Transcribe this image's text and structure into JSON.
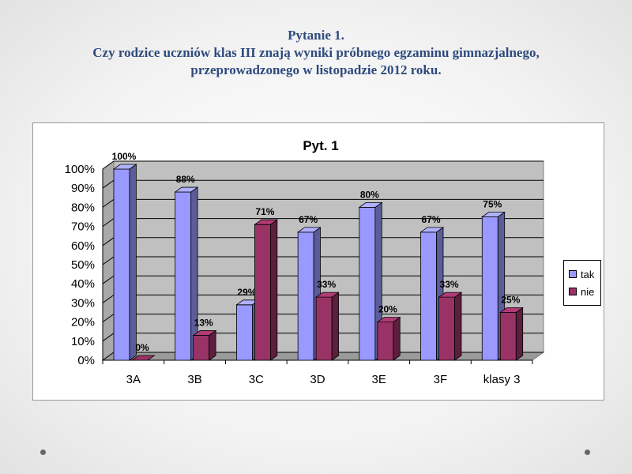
{
  "slide": {
    "title_lines": [
      "Pytanie 1.",
      "Czy rodzice uczniów klas III znają wyniki próbnego egzaminu gimnazjalnego,",
      "przeprowadzonego w listopadzie 2012 roku."
    ]
  },
  "chart_data": {
    "type": "bar",
    "title": "Pyt. 1",
    "categories": [
      "3A",
      "3B",
      "3C",
      "3D",
      "3E",
      "3F",
      "klasy 3"
    ],
    "series": [
      {
        "name": "tak",
        "color": "#9999ff",
        "values": [
          100,
          88,
          29,
          67,
          80,
          67,
          75
        ],
        "labels": [
          "100%",
          "88%",
          "29%",
          "67%",
          "80%",
          "67%",
          "75%"
        ]
      },
      {
        "name": "nie",
        "color": "#993366",
        "values": [
          0,
          13,
          71,
          33,
          20,
          33,
          25
        ],
        "labels": [
          "0%",
          "13%",
          "71%",
          "33%",
          "20%",
          "33%",
          "25%"
        ]
      }
    ],
    "yticks": [
      "0%",
      "10%",
      "20%",
      "30%",
      "40%",
      "50%",
      "60%",
      "70%",
      "80%",
      "90%",
      "100%"
    ],
    "ylim": [
      0,
      100
    ],
    "grid": true,
    "legend": "right",
    "style": "3d-clustered"
  }
}
